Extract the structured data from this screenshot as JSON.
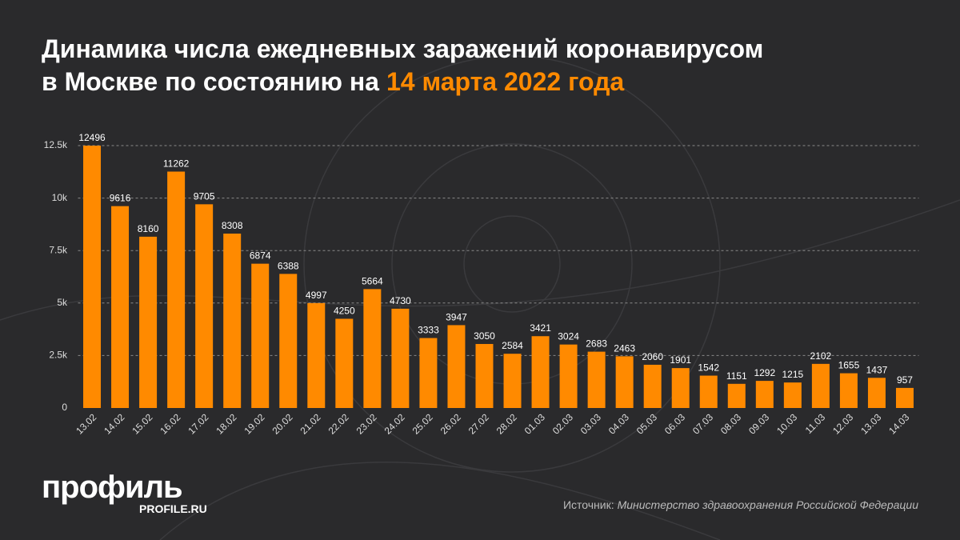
{
  "chart_data": {
    "type": "bar",
    "title_lines": [
      "Динамика числа ежедневных заражений коронавирусом",
      "в Москве по состоянию на"
    ],
    "title_highlight": "14 марта 2022 года",
    "categories": [
      "13.02",
      "14.02",
      "15.02",
      "16.02",
      "17.02",
      "18.02",
      "19.02",
      "20.02",
      "21.02",
      "22.02",
      "23.02",
      "24.02",
      "25.02",
      "26.02",
      "27.02",
      "28.02",
      "01.03",
      "02.03",
      "03.03",
      "04.03",
      "05.03",
      "06.03",
      "07.03",
      "08.03",
      "09.03",
      "10.03",
      "11.03",
      "12.03",
      "13.03",
      "14.03"
    ],
    "values": [
      12496,
      9616,
      8160,
      11262,
      9705,
      8308,
      6874,
      6388,
      4997,
      4250,
      5664,
      4730,
      3333,
      3947,
      3050,
      2584,
      3421,
      3024,
      2683,
      2463,
      2060,
      1901,
      1542,
      1151,
      1292,
      1215,
      2102,
      1655,
      1437,
      957
    ],
    "color": "#ff8a00",
    "ylim": [
      0,
      12500
    ],
    "yticks": [
      0,
      {
        "value": 2500,
        "label": "2.5k"
      },
      {
        "value": 5000,
        "label": "5k"
      },
      {
        "value": 7500,
        "label": "7.5k"
      },
      {
        "value": 10000,
        "label": "10k"
      },
      {
        "value": 12500,
        "label": "12.5k"
      }
    ],
    "grid": true,
    "source_label": "Источник:",
    "source": "Министерство здравоохранения Российской Федерации",
    "logo": "профиль",
    "logo_url": "PROFILE.RU"
  }
}
